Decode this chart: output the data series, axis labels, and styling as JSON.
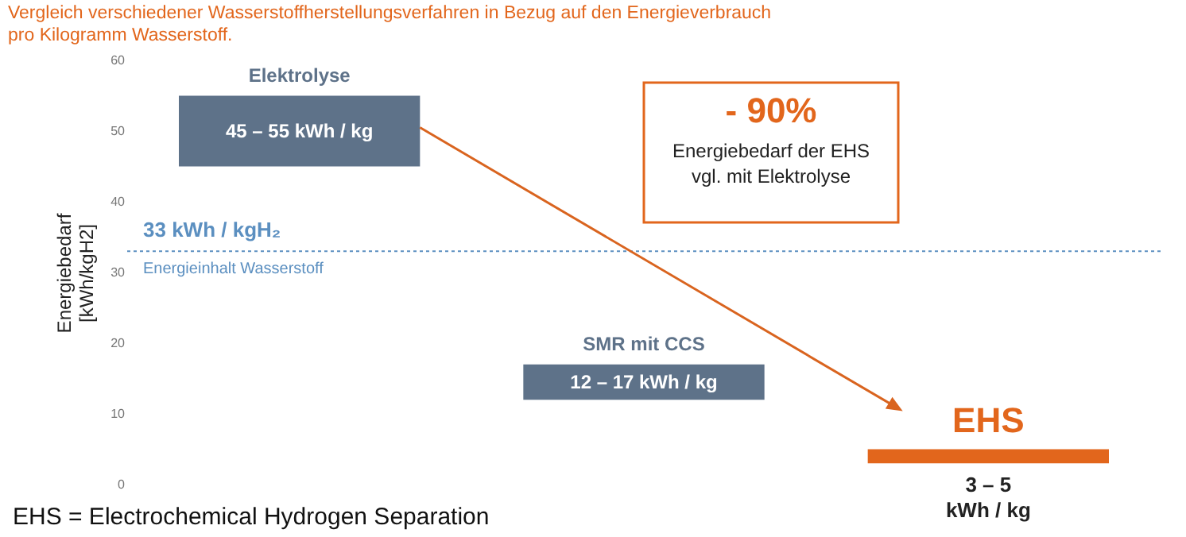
{
  "chart_data": {
    "type": "bar",
    "title": "Vergleich verschiedener Wasserstoffherstellungsverfahren in Bezug auf den Energieverbrauch pro Kilogramm Wasserstoff.",
    "ylabel": "Energiebedarf\n[kWh/kgH2]",
    "categories": [
      "Elektrolyse",
      "SMR mit CCS",
      "EHS"
    ],
    "base": [
      45,
      12,
      3
    ],
    "values": [
      10,
      5,
      2
    ],
    "colors": [
      "#5e7289",
      "#5e7289",
      "#e2661c"
    ],
    "ylim": [
      0,
      60
    ],
    "yticks": [
      0,
      10,
      20,
      30,
      40,
      50,
      60
    ],
    "tick_labels": "y",
    "ref_lines": [
      {
        "axis": "y",
        "value": 33,
        "label": "33 kWh / kgH₂",
        "color": "#5b8fc0",
        "line_style": "dotted"
      }
    ],
    "annotations": [
      {
        "text": "Energieinhalt Wasserstoff",
        "y": 33
      },
      {
        "text": "45 – 55 kWh / kg",
        "x": "Elektrolyse",
        "y": 45
      },
      {
        "text": "12 – 17 kWh / kg",
        "x": "SMR mit CCS",
        "y": 12
      },
      {
        "text": "3 – 5\nkWh / kg",
        "x": "EHS",
        "y": 3
      },
      "- 90%",
      "Energiebedarf der EHS\nvgl. mit Elektrolyse",
      "EHS = Electrochemical Hydrogen Separation"
    ]
  }
}
